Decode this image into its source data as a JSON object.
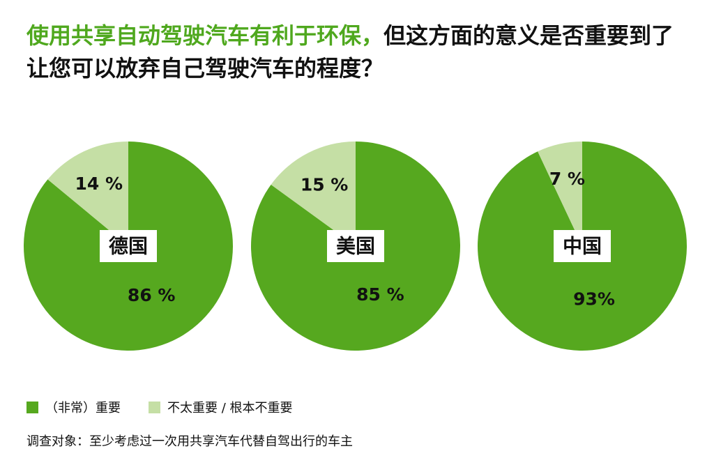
{
  "title": {
    "highlight": "使用共享自动驾驶汽车有利于环保，",
    "rest": "但这方面的意义是否重要到了让您可以放弃自己驾驶汽车的程度？"
  },
  "colors": {
    "important": "#56a81f",
    "not_important": "#c5dfa5",
    "title_highlight": "#4fa81e"
  },
  "chart_data": [
    {
      "type": "pie",
      "title": "德国",
      "slices": [
        {
          "series": "（非常）重要",
          "value": 86,
          "label": "86 %"
        },
        {
          "series": "不太重要 / 根本不重要",
          "value": 14,
          "label": "14 %"
        }
      ]
    },
    {
      "type": "pie",
      "title": "美国",
      "slices": [
        {
          "series": "（非常）重要",
          "value": 85,
          "label": "85 %"
        },
        {
          "series": "不太重要 / 根本不重要",
          "value": 15,
          "label": "15 %"
        }
      ]
    },
    {
      "type": "pie",
      "title": "中国",
      "slices": [
        {
          "series": "（非常）重要",
          "value": 93,
          "label": "93%"
        },
        {
          "series": "不太重要 / 根本不重要",
          "value": 7,
          "label": "7 %"
        }
      ]
    }
  ],
  "legend": {
    "important": "（非常）重要",
    "not_important": "不太重要 / 根本不重要"
  },
  "note": "调查对象：至少考虑过一次用共享汽车代替自驾出行的车主"
}
